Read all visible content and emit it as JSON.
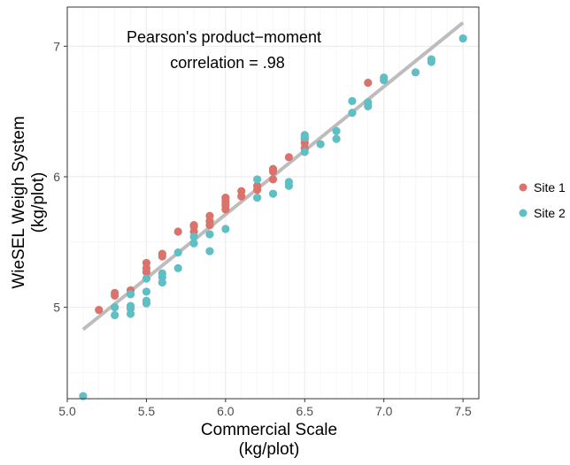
{
  "chart_data": {
    "type": "scatter",
    "title": "",
    "xlabel": [
      "Commercial Scale",
      "(kg/plot)"
    ],
    "ylabel": [
      "WieSEL Weigh System",
      "(kg/plot)"
    ],
    "xlim": [
      5.0,
      7.6
    ],
    "ylim": [
      4.3,
      7.3
    ],
    "x_ticks": [
      5.0,
      5.5,
      6.0,
      6.5,
      7.0,
      7.5
    ],
    "x_tick_labels": [
      "5.0",
      "5.5",
      "6.0",
      "6.5",
      "7.0",
      "7.5"
    ],
    "y_ticks": [
      5,
      6,
      7
    ],
    "y_tick_labels": [
      "5",
      "6",
      "7"
    ],
    "grid": true,
    "legend_position": "right",
    "annotation": [
      "Pearson's product−moment",
      "correlation = .98"
    ],
    "fit_line": {
      "color": "#bdbdbd",
      "points": [
        [
          5.1,
          4.83
        ],
        [
          7.5,
          7.18
        ]
      ]
    },
    "series": [
      {
        "name": "Site 1",
        "color": "#d9736b",
        "points": [
          [
            5.2,
            4.98
          ],
          [
            5.3,
            5.09
          ],
          [
            5.3,
            5.11
          ],
          [
            5.4,
            5.13
          ],
          [
            5.5,
            5.27
          ],
          [
            5.5,
            5.3
          ],
          [
            5.5,
            5.34
          ],
          [
            5.6,
            5.39
          ],
          [
            5.6,
            5.41
          ],
          [
            5.7,
            5.58
          ],
          [
            5.8,
            5.58
          ],
          [
            5.8,
            5.62
          ],
          [
            5.8,
            5.63
          ],
          [
            5.9,
            5.63
          ],
          [
            5.9,
            5.66
          ],
          [
            5.9,
            5.7
          ],
          [
            6.0,
            5.75
          ],
          [
            6.0,
            5.78
          ],
          [
            6.0,
            5.8
          ],
          [
            6.0,
            5.82
          ],
          [
            6.0,
            5.84
          ],
          [
            6.1,
            5.85
          ],
          [
            6.1,
            5.89
          ],
          [
            6.2,
            5.9
          ],
          [
            6.2,
            5.93
          ],
          [
            6.3,
            5.98
          ],
          [
            6.3,
            6.04
          ],
          [
            6.3,
            6.06
          ],
          [
            6.4,
            6.15
          ],
          [
            6.5,
            6.22
          ],
          [
            6.5,
            6.26
          ],
          [
            6.5,
            6.29
          ],
          [
            6.9,
            6.72
          ]
        ]
      },
      {
        "name": "Site 2",
        "color": "#5fbfc4",
        "points": [
          [
            5.1,
            4.32
          ],
          [
            5.3,
            4.94
          ],
          [
            5.3,
            5.0
          ],
          [
            5.4,
            4.95
          ],
          [
            5.4,
            4.99
          ],
          [
            5.4,
            5.01
          ],
          [
            5.4,
            5.1
          ],
          [
            5.5,
            5.03
          ],
          [
            5.5,
            5.05
          ],
          [
            5.5,
            5.12
          ],
          [
            5.5,
            5.22
          ],
          [
            5.6,
            5.19
          ],
          [
            5.6,
            5.23
          ],
          [
            5.6,
            5.26
          ],
          [
            5.7,
            5.3
          ],
          [
            5.7,
            5.42
          ],
          [
            5.8,
            5.49
          ],
          [
            5.8,
            5.54
          ],
          [
            5.9,
            5.43
          ],
          [
            5.9,
            5.56
          ],
          [
            6.0,
            5.6
          ],
          [
            6.2,
            5.84
          ],
          [
            6.2,
            5.98
          ],
          [
            6.3,
            5.87
          ],
          [
            6.4,
            5.93
          ],
          [
            6.4,
            5.96
          ],
          [
            6.5,
            6.19
          ],
          [
            6.5,
            6.3
          ],
          [
            6.5,
            6.32
          ],
          [
            6.6,
            6.25
          ],
          [
            6.7,
            6.29
          ],
          [
            6.7,
            6.35
          ],
          [
            6.8,
            6.49
          ],
          [
            6.8,
            6.58
          ],
          [
            6.9,
            6.54
          ],
          [
            6.9,
            6.57
          ],
          [
            7.0,
            6.74
          ],
          [
            7.0,
            6.76
          ],
          [
            7.2,
            6.8
          ],
          [
            7.3,
            6.88
          ],
          [
            7.3,
            6.9
          ],
          [
            7.5,
            7.06
          ]
        ]
      }
    ]
  }
}
